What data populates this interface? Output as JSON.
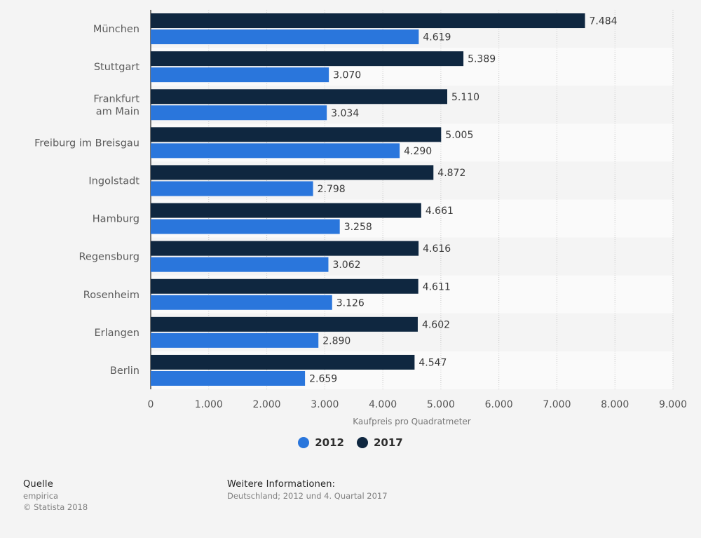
{
  "chart_data": {
    "type": "bar",
    "orientation": "horizontal",
    "categories": [
      "München",
      "Stuttgart",
      "Frankfurt am Main",
      "Freiburg im Breisgau",
      "Ingolstadt",
      "Hamburg",
      "Regensburg",
      "Rosenheim",
      "Erlangen",
      "Berlin"
    ],
    "category_lines": [
      [
        "München"
      ],
      [
        "Stuttgart"
      ],
      [
        "Frankfurt",
        "am Main"
      ],
      [
        "Freiburg im Breisgau"
      ],
      [
        "Ingolstadt"
      ],
      [
        "Hamburg"
      ],
      [
        "Regensburg"
      ],
      [
        "Rosenheim"
      ],
      [
        "Erlangen"
      ],
      [
        "Berlin"
      ]
    ],
    "series": [
      {
        "name": "2017",
        "color": "#0f2740",
        "values": [
          7484,
          5389,
          5110,
          5005,
          4872,
          4661,
          4616,
          4611,
          4602,
          4547
        ],
        "labels": [
          "7.484",
          "5.389",
          "5.110",
          "5.005",
          "4.872",
          "4.661",
          "4.616",
          "4.611",
          "4.602",
          "4.547"
        ]
      },
      {
        "name": "2012",
        "color": "#2a76dc",
        "values": [
          4619,
          3070,
          3034,
          4290,
          2798,
          3258,
          3062,
          3126,
          2890,
          2659
        ],
        "labels": [
          "4.619",
          "3.070",
          "3.034",
          "4.290",
          "2.798",
          "3.258",
          "3.062",
          "3.126",
          "2.890",
          "2.659"
        ]
      }
    ],
    "xlim": [
      0,
      9000
    ],
    "ticks": [
      0,
      1000,
      2000,
      3000,
      4000,
      5000,
      6000,
      7000,
      8000,
      9000
    ],
    "tick_labels": [
      "0",
      "1.000",
      "2.000",
      "3.000",
      "4.000",
      "5.000",
      "6.000",
      "7.000",
      "8.000",
      "9.000"
    ],
    "xlabel": "Kaufpreis pro Quadratmeter",
    "ylabel": "",
    "grid": true,
    "legend_position": "bottom-center"
  },
  "legend": {
    "items": [
      {
        "label": "2012",
        "color": "#2a76dc"
      },
      {
        "label": "2017",
        "color": "#0f2740"
      }
    ]
  },
  "footer": {
    "source_heading": "Quelle",
    "source": "empirica",
    "copyright": "© Statista 2018",
    "info_heading": "Weitere Informationen:",
    "info": "Deutschland; 2012 und 4. Quartal 2017"
  }
}
